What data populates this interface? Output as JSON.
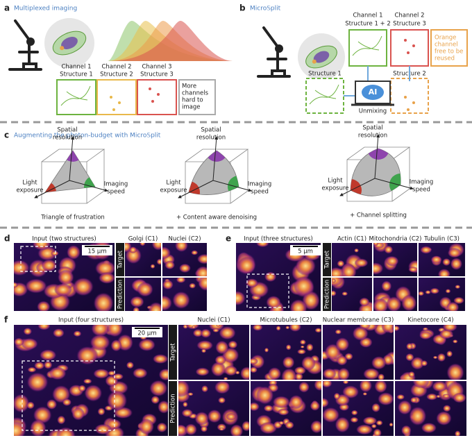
{
  "panel_a": {
    "letter": "a",
    "title": "Multiplexed imaging",
    "channels": [
      {
        "line1": "Channel 1",
        "line2": "Structure 1"
      },
      {
        "line1": "Channel 2",
        "line2": "Structure 2"
      },
      {
        "line1": "Channel 3",
        "line2": "Structure 3"
      }
    ],
    "note": [
      "More",
      "channels",
      "hard to",
      "image"
    ]
  },
  "panel_b": {
    "letter": "b",
    "title": "Micro𝕊plit",
    "channels": [
      {
        "line1": "Channel 1",
        "line2": "Structure 1 + 2"
      },
      {
        "line1": "Channel 2",
        "line2": "Structure 3"
      }
    ],
    "note": [
      "Orange",
      "channel",
      "free to be",
      "reused"
    ],
    "outputs": [
      "Structure 1",
      "Structure 2"
    ],
    "ai": "AI",
    "caption": "Unmixing"
  },
  "panel_c": {
    "letter": "c",
    "title": "Augmenting the photon-budget with Micro𝕊plit",
    "diagrams": [
      {
        "top": [
          "Spatial",
          "resolution"
        ],
        "left": [
          "Light",
          "exposure"
        ],
        "right": [
          "Imaging",
          "speed"
        ],
        "caption": "Triangle of frustration"
      },
      {
        "top": [
          "Spatial",
          "resolution"
        ],
        "left": [
          "Light",
          "exposure"
        ],
        "right": [
          "Imaging",
          "speed"
        ],
        "caption": "+ Content aware denoising"
      },
      {
        "top": [
          "Spatial",
          "resolution"
        ],
        "left": [
          "Light",
          "exposure"
        ],
        "right": [
          "Imaging",
          "speed"
        ],
        "caption": "+ Channel splitting"
      }
    ]
  },
  "panel_d": {
    "letter": "d",
    "input": "Input (two structures)",
    "scale": "15 µm",
    "channels": [
      "Golgi (C1)",
      "Nuclei (C2)"
    ],
    "rows": [
      "Target",
      "Prediction"
    ]
  },
  "panel_e": {
    "letter": "e",
    "input": "Input (three structures)",
    "scale": "5 µm",
    "channels": [
      "Actin (C1)",
      "Mitochondria (C2)",
      "Tubulin (C3)"
    ],
    "rows": [
      "Target",
      "Prediction"
    ]
  },
  "panel_f": {
    "letter": "f",
    "input": "Input (four structures)",
    "scale": "20 µm",
    "channels": [
      "Nuclei (C1)",
      "Microtubules (C2)",
      "Nuclear membrane (C3)",
      "Kinetocore (C4)"
    ],
    "rows": [
      "Target",
      "Prediction"
    ]
  }
}
